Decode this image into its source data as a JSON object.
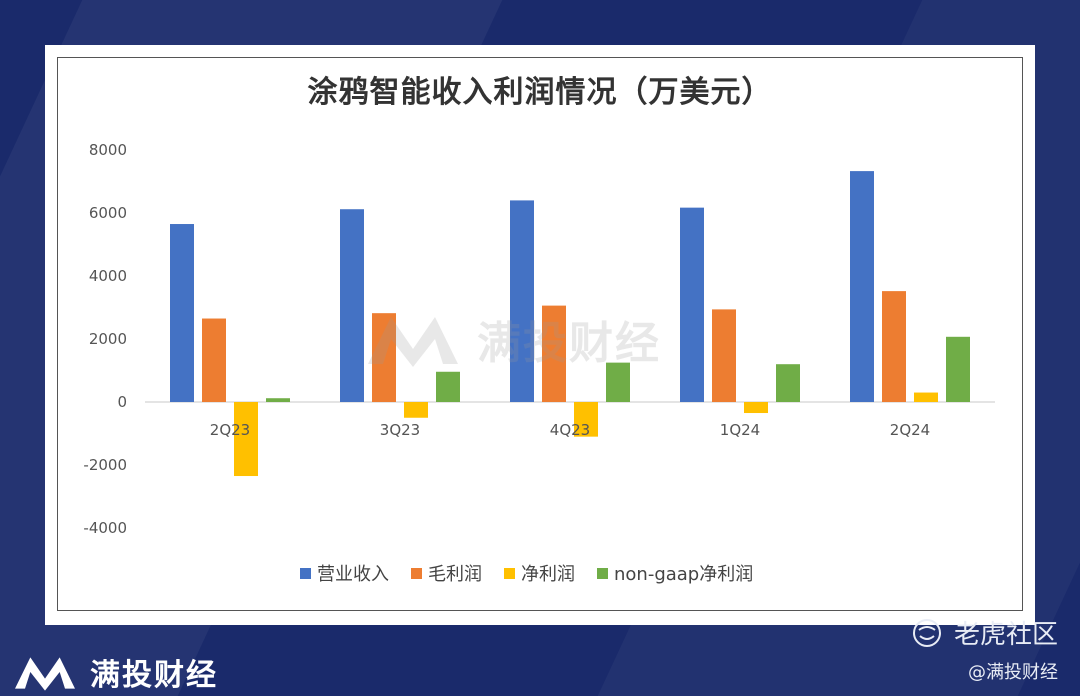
{
  "chart_data": {
    "type": "bar",
    "title": "涂鸦智能收入利润情况（万美元）",
    "xlabel": "",
    "ylabel": "",
    "categories": [
      "2Q23",
      "3Q23",
      "4Q23",
      "1Q24",
      "2Q24"
    ],
    "yticks": [
      "8000",
      "6000",
      "4000",
      "2000",
      "0",
      "-2000",
      "-4000"
    ],
    "ylim": [
      -4000,
      8000
    ],
    "grid": false,
    "legend_position": "bottom",
    "series": [
      {
        "name": "营业收入",
        "color": "#4472c4",
        "values": [
          5650,
          6120,
          6400,
          6170,
          7330
        ]
      },
      {
        "name": "毛利润",
        "color": "#ed7d31",
        "values": [
          2650,
          2820,
          3060,
          2940,
          3520
        ]
      },
      {
        "name": "净利润",
        "color": "#ffc000",
        "values": [
          -2350,
          -500,
          -1100,
          -350,
          300
        ]
      },
      {
        "name": "non-gaap净利润",
        "color": "#70ad47",
        "values": [
          120,
          960,
          1250,
          1200,
          2070
        ]
      }
    ]
  },
  "watermark": {
    "text": "满投财经"
  },
  "brand": {
    "text": "满投财经"
  },
  "community": {
    "name": "老虎社区",
    "handle": "@满投财经"
  }
}
